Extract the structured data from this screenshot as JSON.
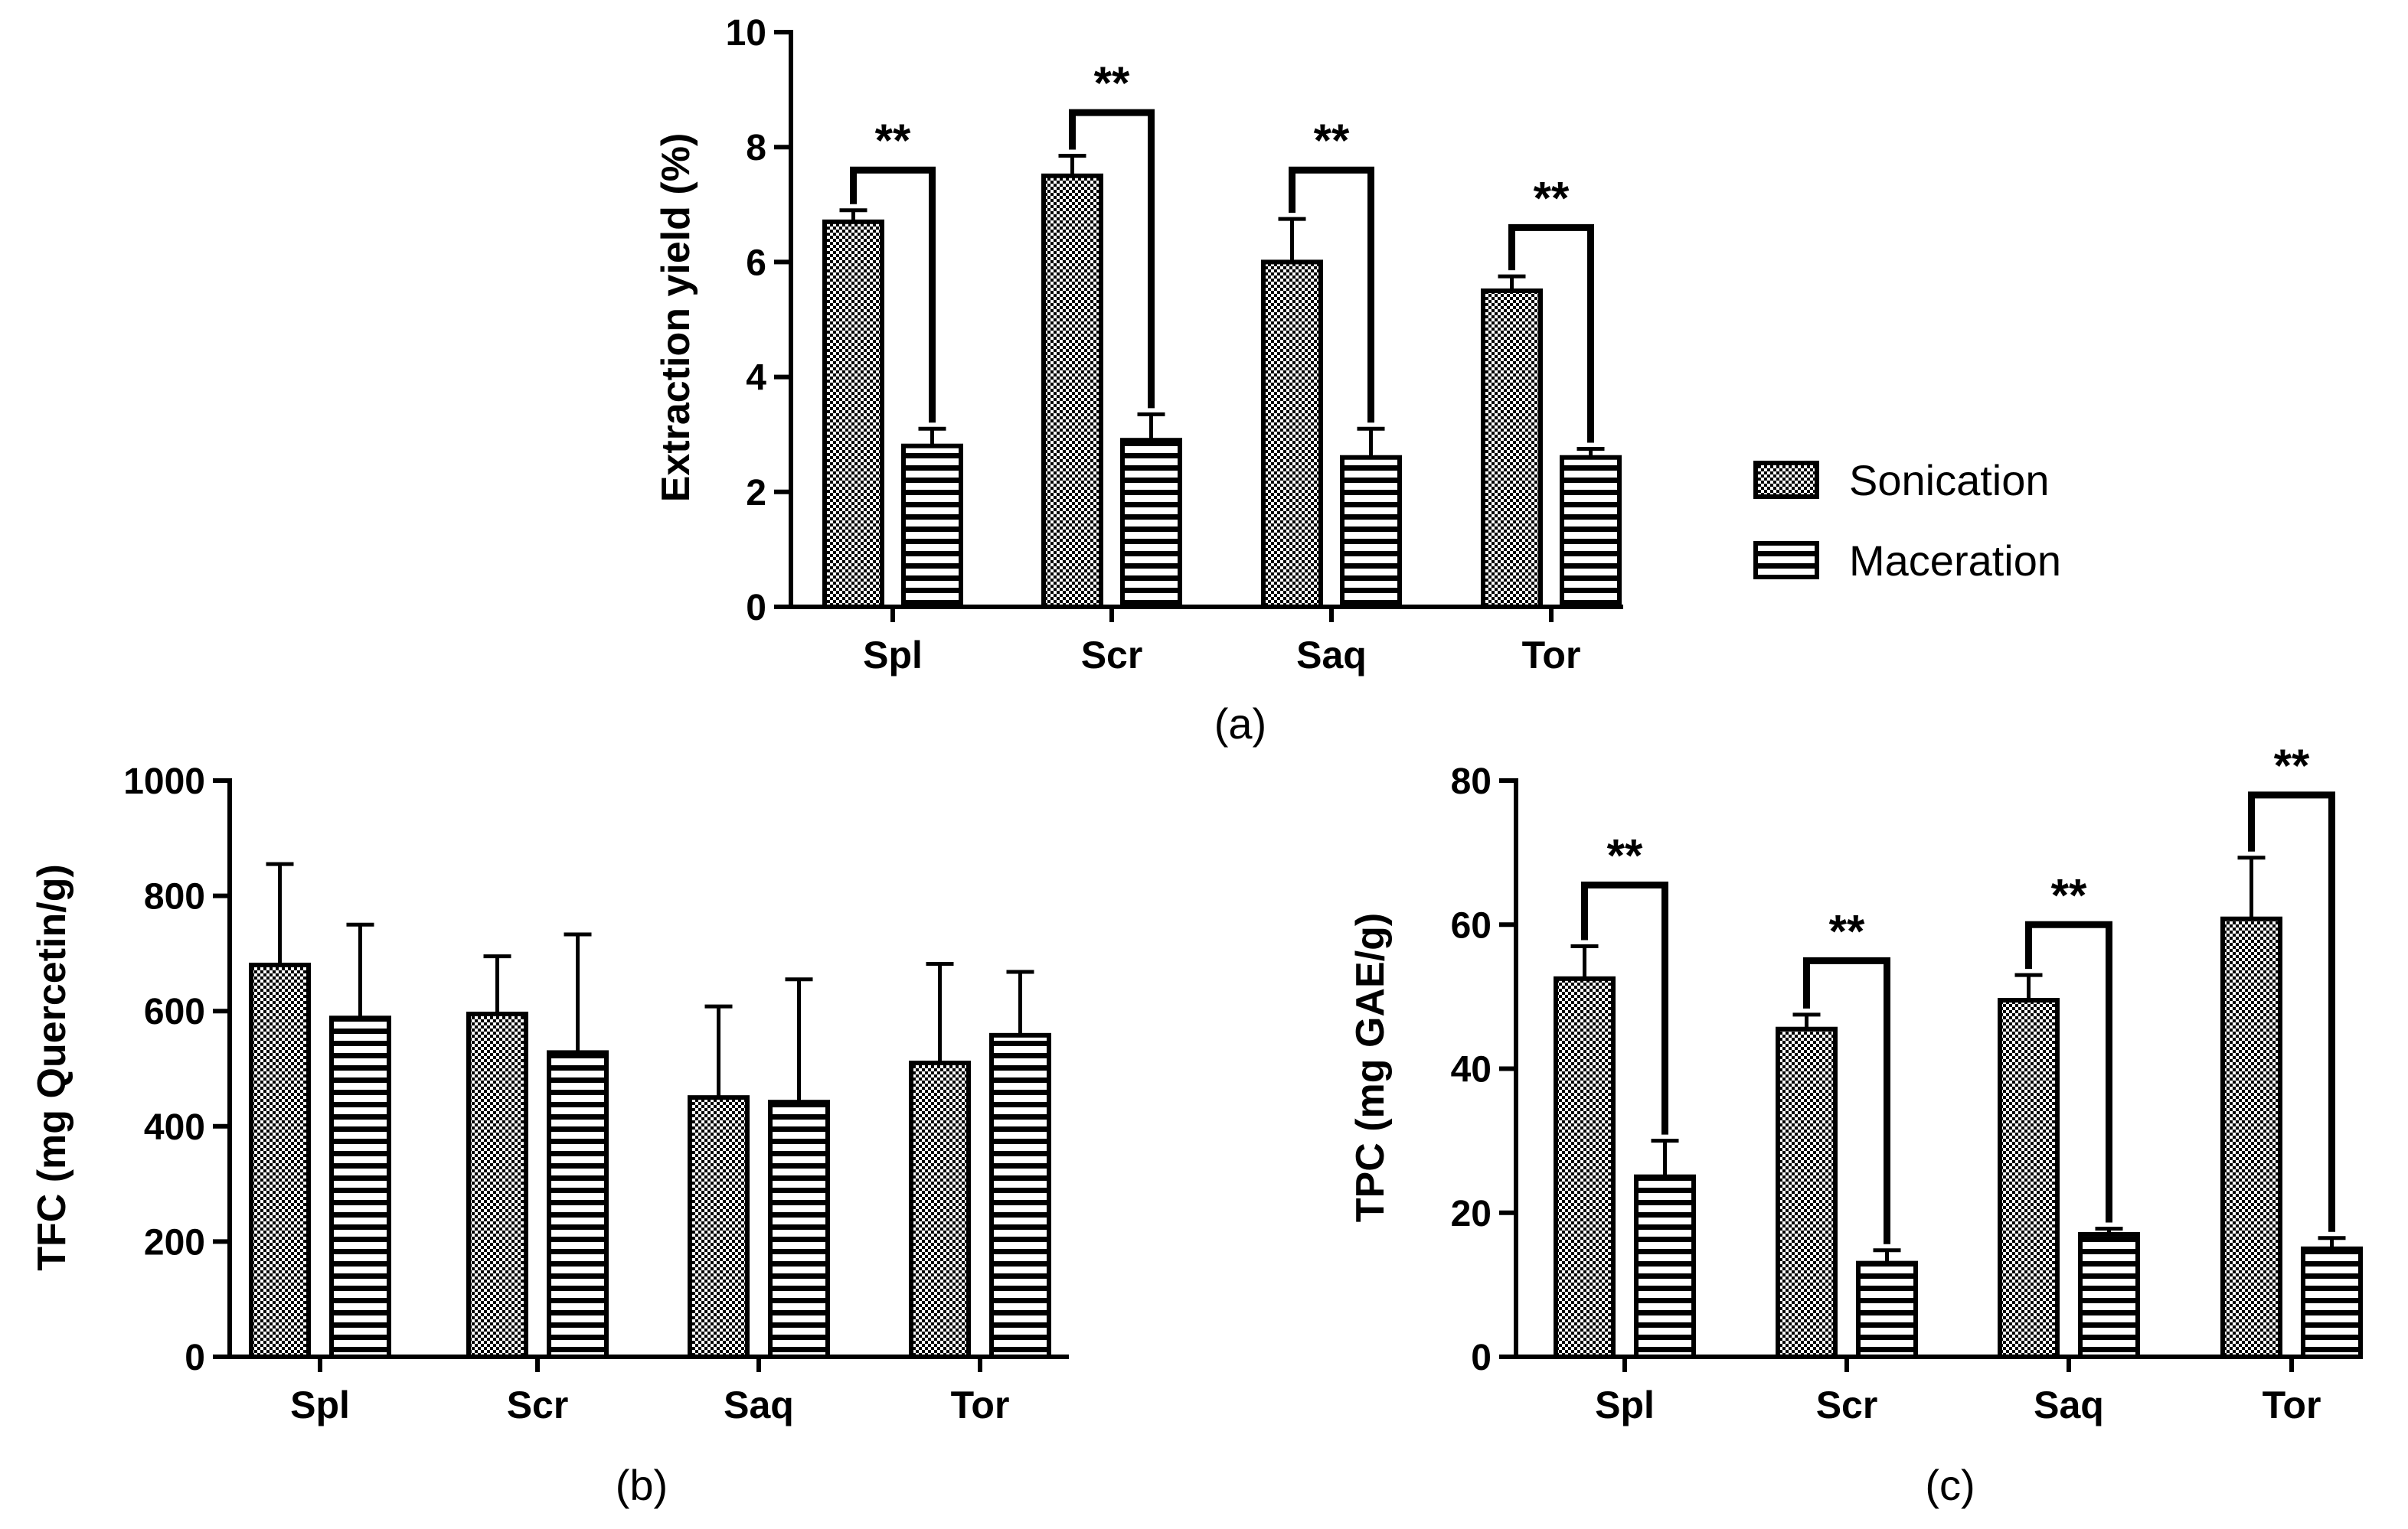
{
  "legend": {
    "items": [
      {
        "name": "Sonication",
        "pattern": "dots"
      },
      {
        "name": "Maceration",
        "pattern": "stripes"
      }
    ]
  },
  "chart_data": [
    {
      "id": "a",
      "type": "bar",
      "panel_label": "(a)",
      "title": "",
      "xlabel": "",
      "ylabel": "Extraction yield (%)",
      "ylim": [
        0,
        10
      ],
      "yticks": [
        0,
        2,
        4,
        6,
        8,
        10
      ],
      "ytick_labels": [
        "0",
        "2",
        "4",
        "6",
        "8",
        "10"
      ],
      "categories": [
        "Spl",
        "Scr",
        "Saq",
        "Tor"
      ],
      "series": [
        {
          "name": "Sonication",
          "values": [
            6.7,
            7.5,
            6.0,
            5.5
          ],
          "errors": [
            0.2,
            0.35,
            0.75,
            0.25
          ]
        },
        {
          "name": "Maceration",
          "values": [
            2.8,
            2.9,
            2.6,
            2.6
          ],
          "errors": [
            0.3,
            0.45,
            0.5,
            0.15
          ]
        }
      ],
      "significance": {
        "label": "**",
        "bracket_height": [
          7.6,
          8.6,
          7.6,
          6.6
        ]
      }
    },
    {
      "id": "b",
      "type": "bar",
      "panel_label": "(b)",
      "title": "",
      "xlabel": "",
      "ylabel": "TFC (mg Quercetin/g)",
      "ylim": [
        0,
        1000
      ],
      "yticks": [
        0,
        200,
        400,
        600,
        800,
        1000
      ],
      "ytick_labels": [
        "0",
        "200",
        "400",
        "600",
        "800",
        "1000"
      ],
      "categories": [
        "Spl",
        "Scr",
        "Saq",
        "Tor"
      ],
      "series": [
        {
          "name": "Sonication",
          "values": [
            680,
            595,
            450,
            510
          ],
          "errors": [
            175,
            100,
            158,
            172
          ]
        },
        {
          "name": "Maceration",
          "values": [
            588,
            528,
            442,
            558
          ],
          "errors": [
            162,
            205,
            213,
            110
          ]
        }
      ]
    },
    {
      "id": "c",
      "type": "bar",
      "panel_label": "(c)",
      "title": "",
      "xlabel": "",
      "ylabel": "TPC (mg GAE/g)",
      "ylim": [
        0,
        80
      ],
      "yticks": [
        0,
        20,
        40,
        60,
        80
      ],
      "ytick_labels": [
        "0",
        "20",
        "40",
        "60",
        "80"
      ],
      "categories": [
        "Spl",
        "Scr",
        "Saq",
        "Tor"
      ],
      "series": [
        {
          "name": "Sonication",
          "values": [
            52.5,
            45.5,
            49.5,
            60.8
          ],
          "errors": [
            4.5,
            2.0,
            3.5,
            8.5
          ]
        },
        {
          "name": "Maceration",
          "values": [
            25.0,
            13.0,
            17.0,
            15.0
          ],
          "errors": [
            5.0,
            1.8,
            0.8,
            1.5
          ]
        }
      ],
      "significance": {
        "label": "**",
        "bracket_height": [
          65.5,
          55.0,
          60.0,
          78.0
        ]
      }
    }
  ]
}
